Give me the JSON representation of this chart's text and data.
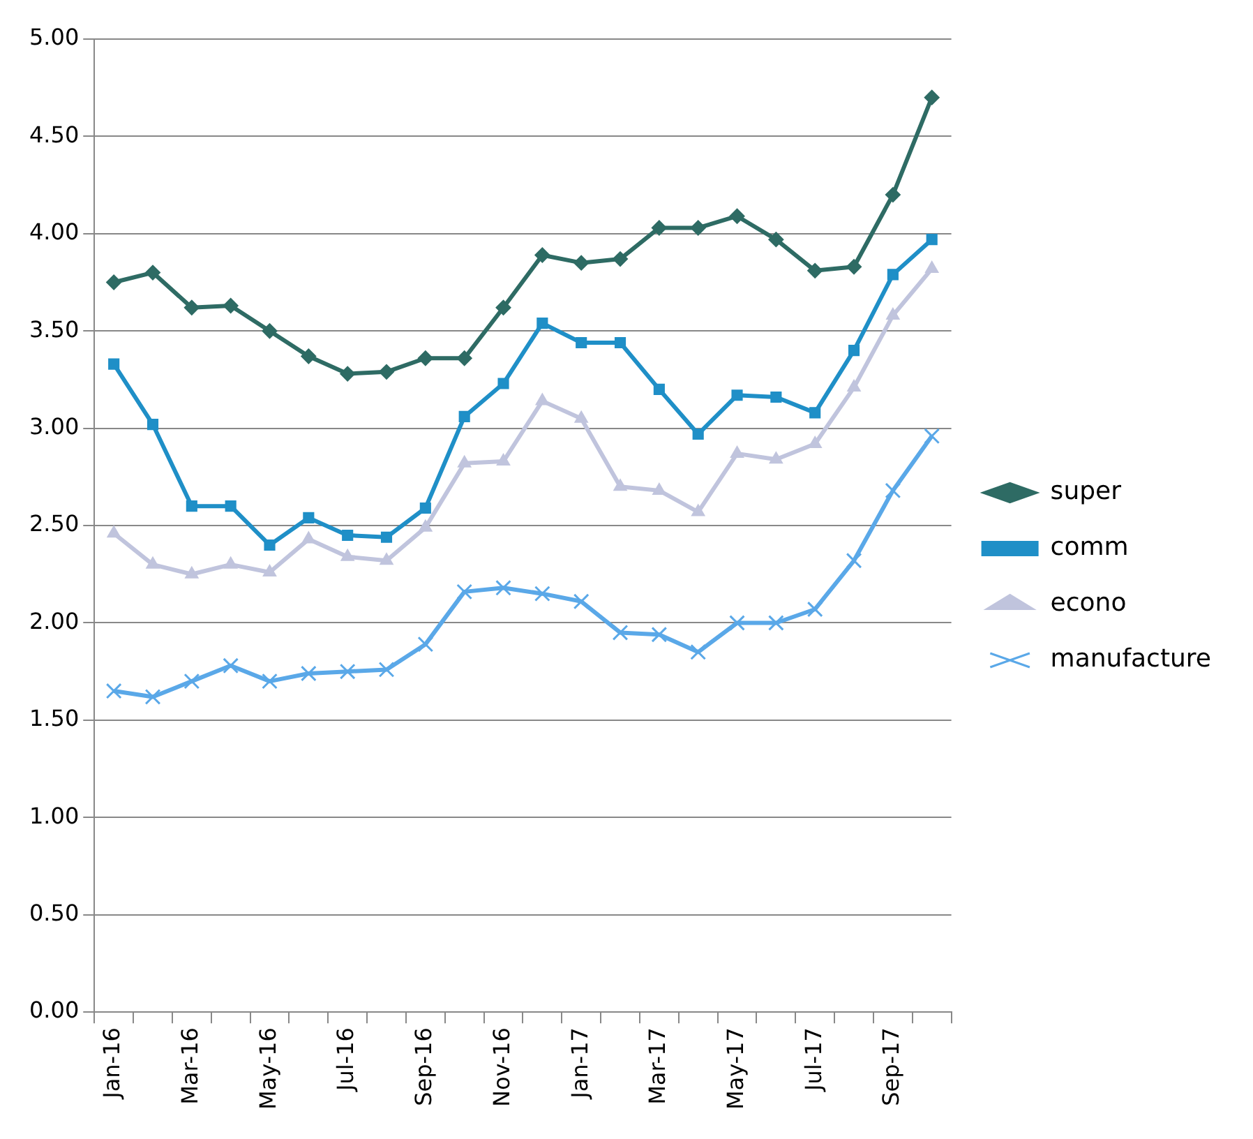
{
  "chart_data": {
    "type": "line",
    "categories": [
      "Jan-16",
      null,
      "Mar-16",
      null,
      "May-16",
      null,
      "Jul-16",
      null,
      "Sep-16",
      null,
      "Nov-16",
      null,
      "Jan-17",
      null,
      "Mar-17",
      null,
      "May-17",
      null,
      "Jul-17",
      null,
      "Sep-17",
      null
    ],
    "series": [
      {
        "name": "super",
        "color": "#2e6b64",
        "marker": "diamond",
        "values": [
          3.75,
          3.8,
          3.62,
          3.63,
          3.5,
          3.37,
          3.28,
          3.29,
          3.36,
          3.36,
          3.62,
          3.89,
          3.85,
          3.87,
          4.03,
          4.03,
          4.09,
          3.97,
          3.81,
          3.83,
          4.2,
          4.7
        ]
      },
      {
        "name": "comm",
        "color": "#1f8fc7",
        "marker": "square",
        "values": [
          3.33,
          3.02,
          2.6,
          2.6,
          2.4,
          2.54,
          2.45,
          2.44,
          2.59,
          3.06,
          3.23,
          3.54,
          3.44,
          3.44,
          3.2,
          2.97,
          3.17,
          3.16,
          3.08,
          3.4,
          3.79,
          3.97
        ]
      },
      {
        "name": "econo",
        "color": "#c0c4dd",
        "marker": "triangle",
        "values": [
          2.46,
          2.3,
          2.25,
          2.3,
          2.26,
          2.43,
          2.34,
          2.32,
          2.49,
          2.82,
          2.83,
          3.14,
          3.05,
          2.7,
          2.68,
          2.57,
          2.87,
          2.84,
          2.92,
          3.21,
          3.58,
          3.82
        ]
      },
      {
        "name": "manufacture",
        "color": "#5aa8e8",
        "marker": "cross",
        "values": [
          1.65,
          1.62,
          1.7,
          1.78,
          1.7,
          1.74,
          1.75,
          1.76,
          1.89,
          2.16,
          2.18,
          2.15,
          2.11,
          1.95,
          1.94,
          1.85,
          2.0,
          2.0,
          2.07,
          2.32,
          2.68,
          2.96
        ]
      }
    ],
    "ylim": [
      0,
      5
    ],
    "yticks": [
      {
        "value": 0,
        "label": "0.00"
      },
      {
        "value": 0.5,
        "label": "0.50"
      },
      {
        "value": 1,
        "label": "1.00"
      },
      {
        "value": 1.5,
        "label": "1.50"
      },
      {
        "value": 2,
        "label": "2.00"
      },
      {
        "value": 2.5,
        "label": "2.50"
      },
      {
        "value": 3,
        "label": "3.00"
      },
      {
        "value": 3.5,
        "label": "3.50"
      },
      {
        "value": 4,
        "label": "4.00"
      },
      {
        "value": 4.5,
        "label": "4.50"
      },
      {
        "value": 5,
        "label": "5.00"
      }
    ],
    "grid": "y",
    "legend": "right",
    "line_style": "solid"
  }
}
